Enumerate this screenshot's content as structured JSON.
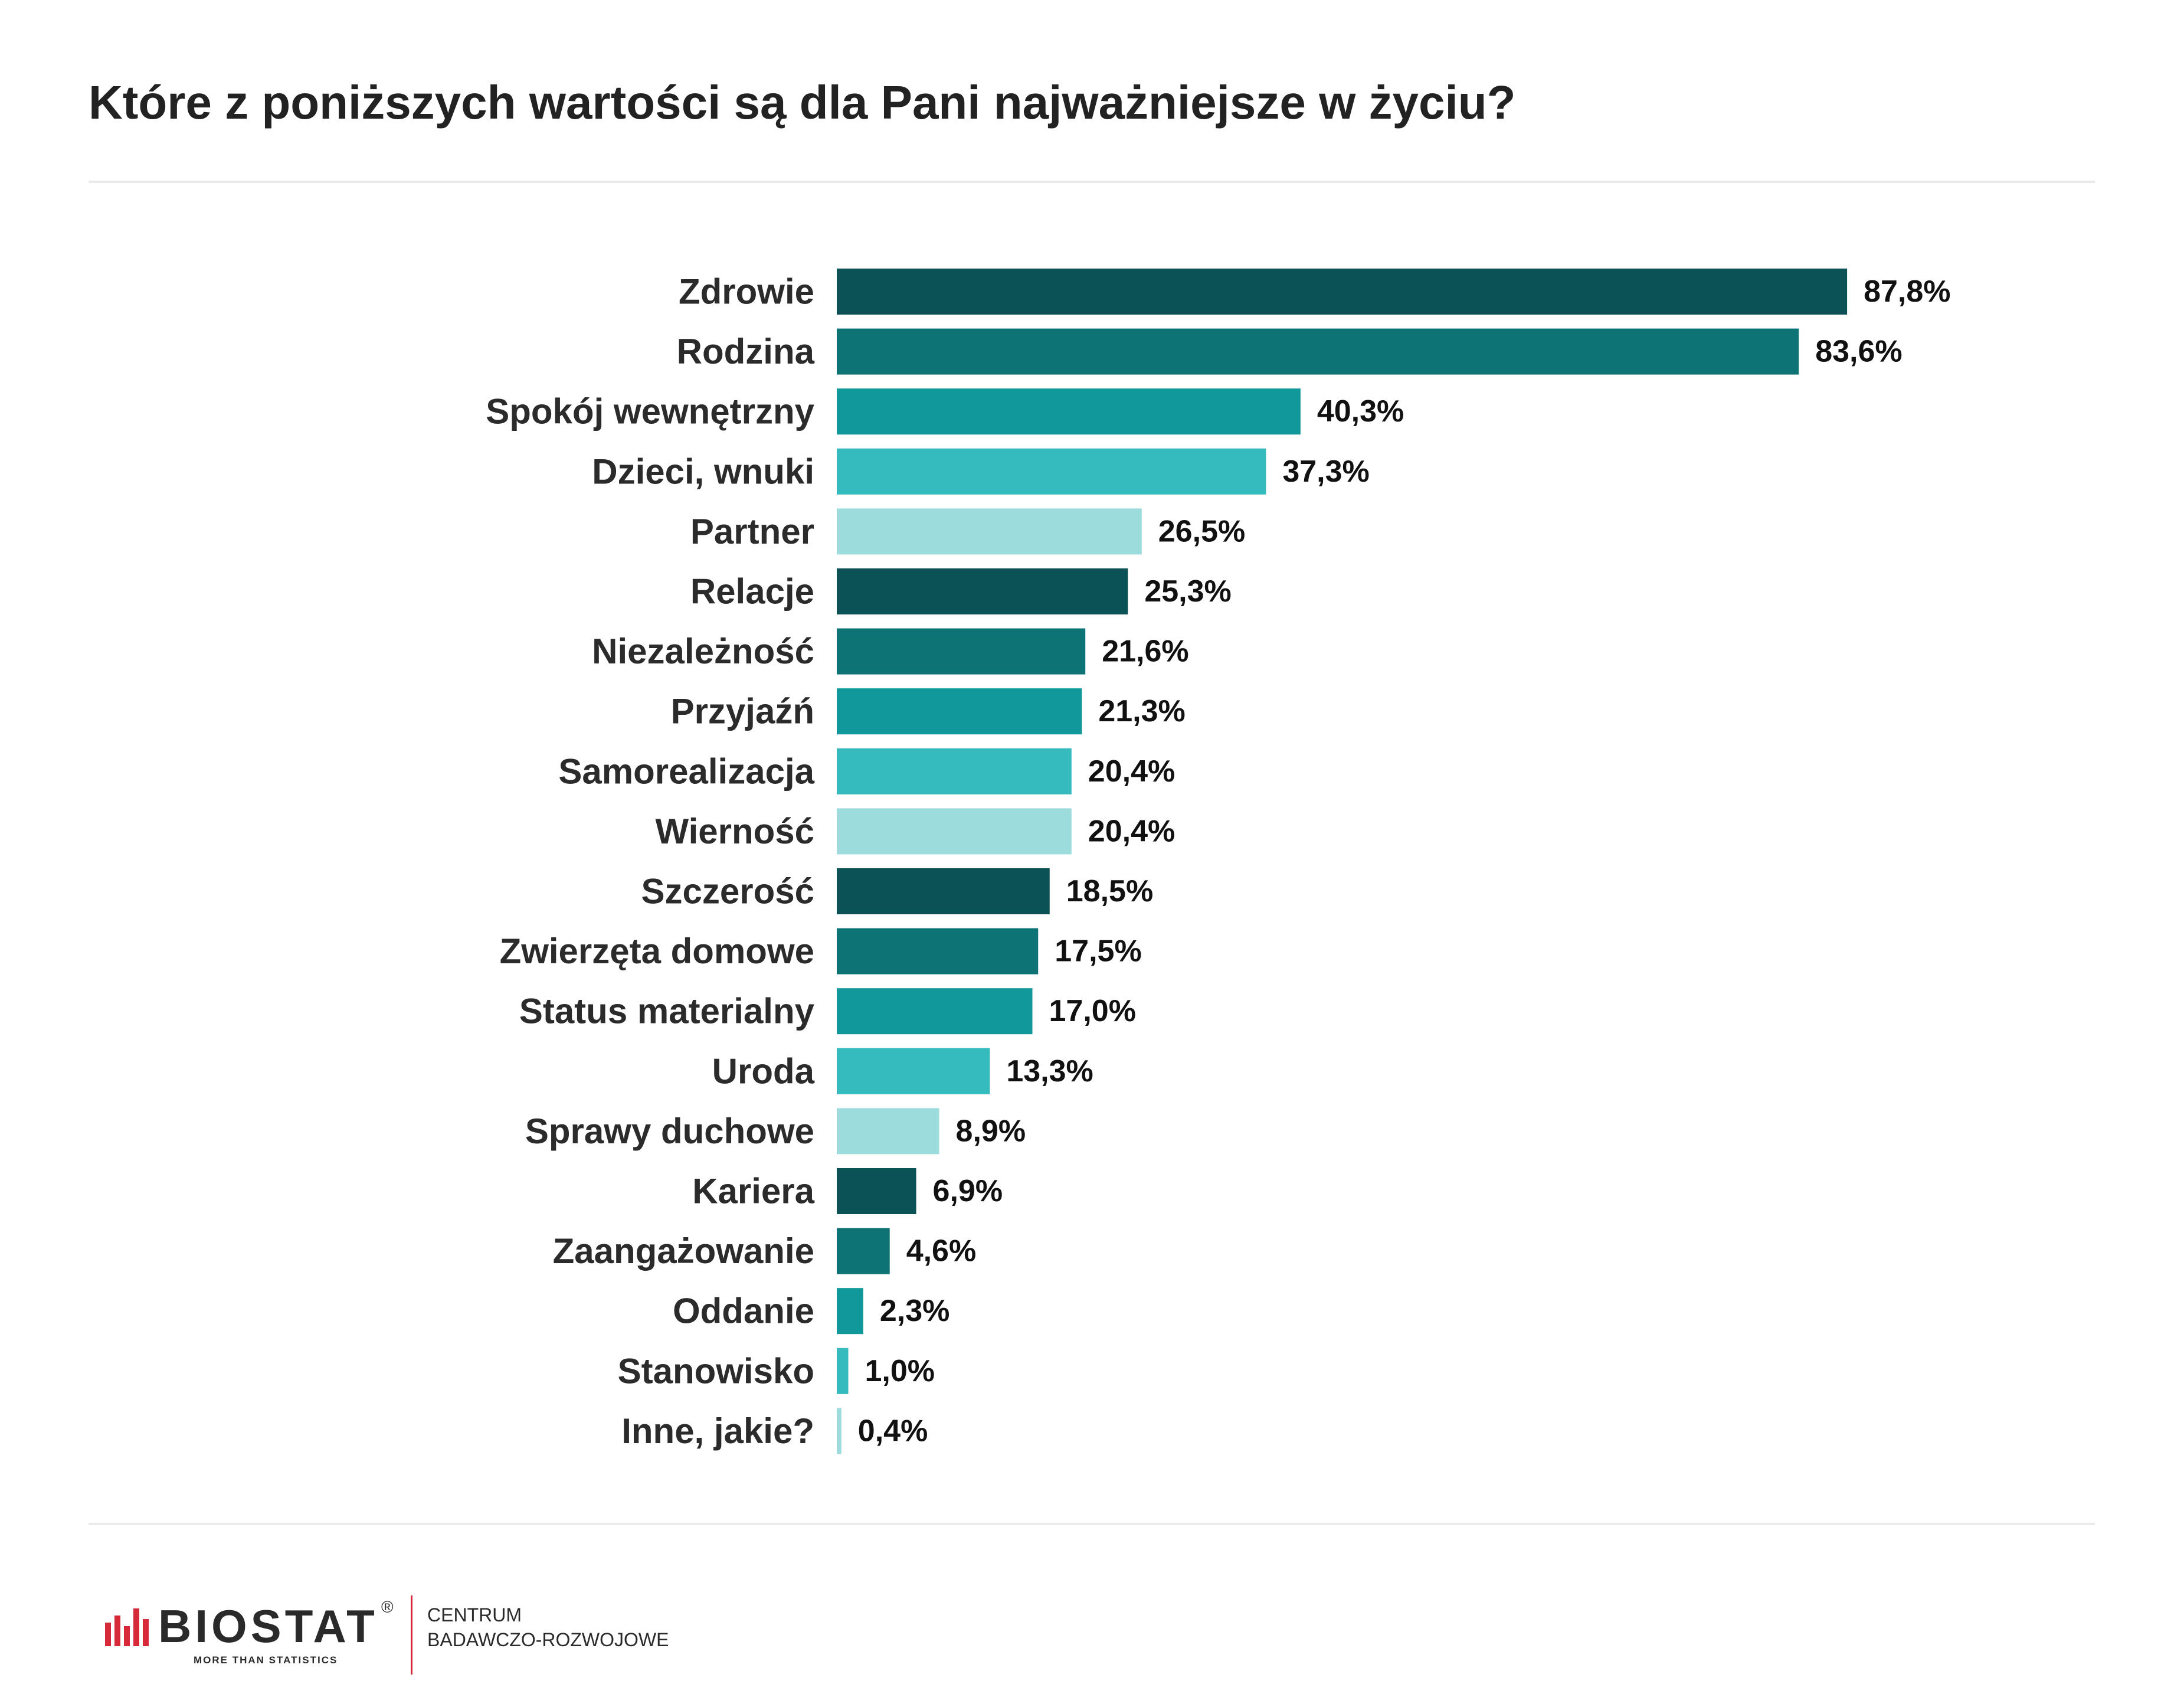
{
  "title": "Które z poniższych wartości są dla Pani najważniejsze w życiu?",
  "chart_data": {
    "type": "bar",
    "orientation": "horizontal",
    "categories": [
      "Zdrowie",
      "Rodzina",
      "Spokój wewnętrzny",
      "Dzieci, wnuki",
      "Partner",
      "Relacje",
      "Niezależność",
      "Przyjaźń",
      "Samorealizacja",
      "Wierność",
      "Szczerość",
      "Zwierzęta domowe",
      "Status materialny",
      "Uroda",
      "Sprawy duchowe",
      "Kariera",
      "Zaangażowanie",
      "Oddanie",
      "Stanowisko",
      "Inne, jakie?"
    ],
    "values": [
      87.8,
      83.6,
      40.3,
      37.3,
      26.5,
      25.3,
      21.6,
      21.3,
      20.4,
      20.4,
      18.5,
      17.5,
      17.0,
      13.3,
      8.9,
      6.9,
      4.6,
      2.3,
      1.0,
      0.4
    ],
    "value_labels": [
      "87,8%",
      "83,6%",
      "40,3%",
      "37,3%",
      "26,5%",
      "25,3%",
      "21,6%",
      "21,3%",
      "20,4%",
      "20,4%",
      "18,5%",
      "17,5%",
      "17,0%",
      "13,3%",
      "8,9%",
      "6,9%",
      "4,6%",
      "2,3%",
      "1,0%",
      "0,4%"
    ],
    "unit": "%",
    "xlim": [
      0,
      100
    ],
    "grid": false,
    "legend": "none",
    "colors": [
      "#0b5257",
      "#0e7375",
      "#10989a",
      "#35babe",
      "#9ddcdd"
    ]
  },
  "logo": {
    "name": "BIOSTAT",
    "registered": "®",
    "tagline": "MORE THAN STATISTICS",
    "sub_line1": "CENTRUM",
    "sub_line2": "BADAWCZO-ROZWOJOWE",
    "accent_color": "#d6293a"
  }
}
